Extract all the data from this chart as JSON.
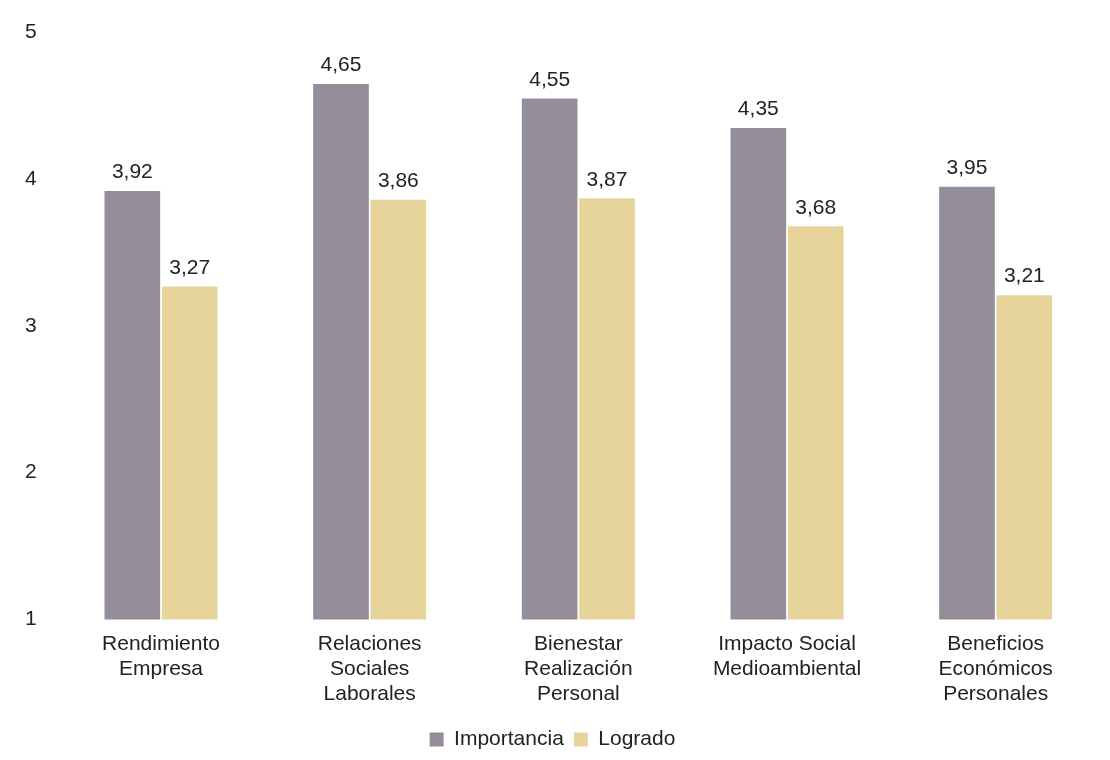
{
  "chart_data": {
    "type": "bar",
    "categories": [
      "Rendimiento Empresa",
      "Relaciones Sociales Laborales",
      "Bienestar Realización Personal",
      "Impacto Social Medioambiental",
      "Beneficios Económicos Personales"
    ],
    "series": [
      {
        "name": "Importancia",
        "color": "#958e9a",
        "values": [
          3.92,
          4.65,
          4.55,
          4.35,
          3.95
        ],
        "value_labels": [
          "3,92",
          "4,65",
          "4,55",
          "4,35",
          "3,95"
        ]
      },
      {
        "name": "Logrado",
        "color": "#e6d49a",
        "values": [
          3.27,
          3.86,
          3.87,
          3.68,
          3.21
        ],
        "value_labels": [
          "3,27",
          "3,86",
          "3,87",
          "3,68",
          "3,21"
        ]
      }
    ],
    "ylim": [
      1,
      5
    ],
    "yticks": [
      1,
      2,
      3,
      4,
      5
    ],
    "grid": false,
    "legend": "bottom"
  }
}
